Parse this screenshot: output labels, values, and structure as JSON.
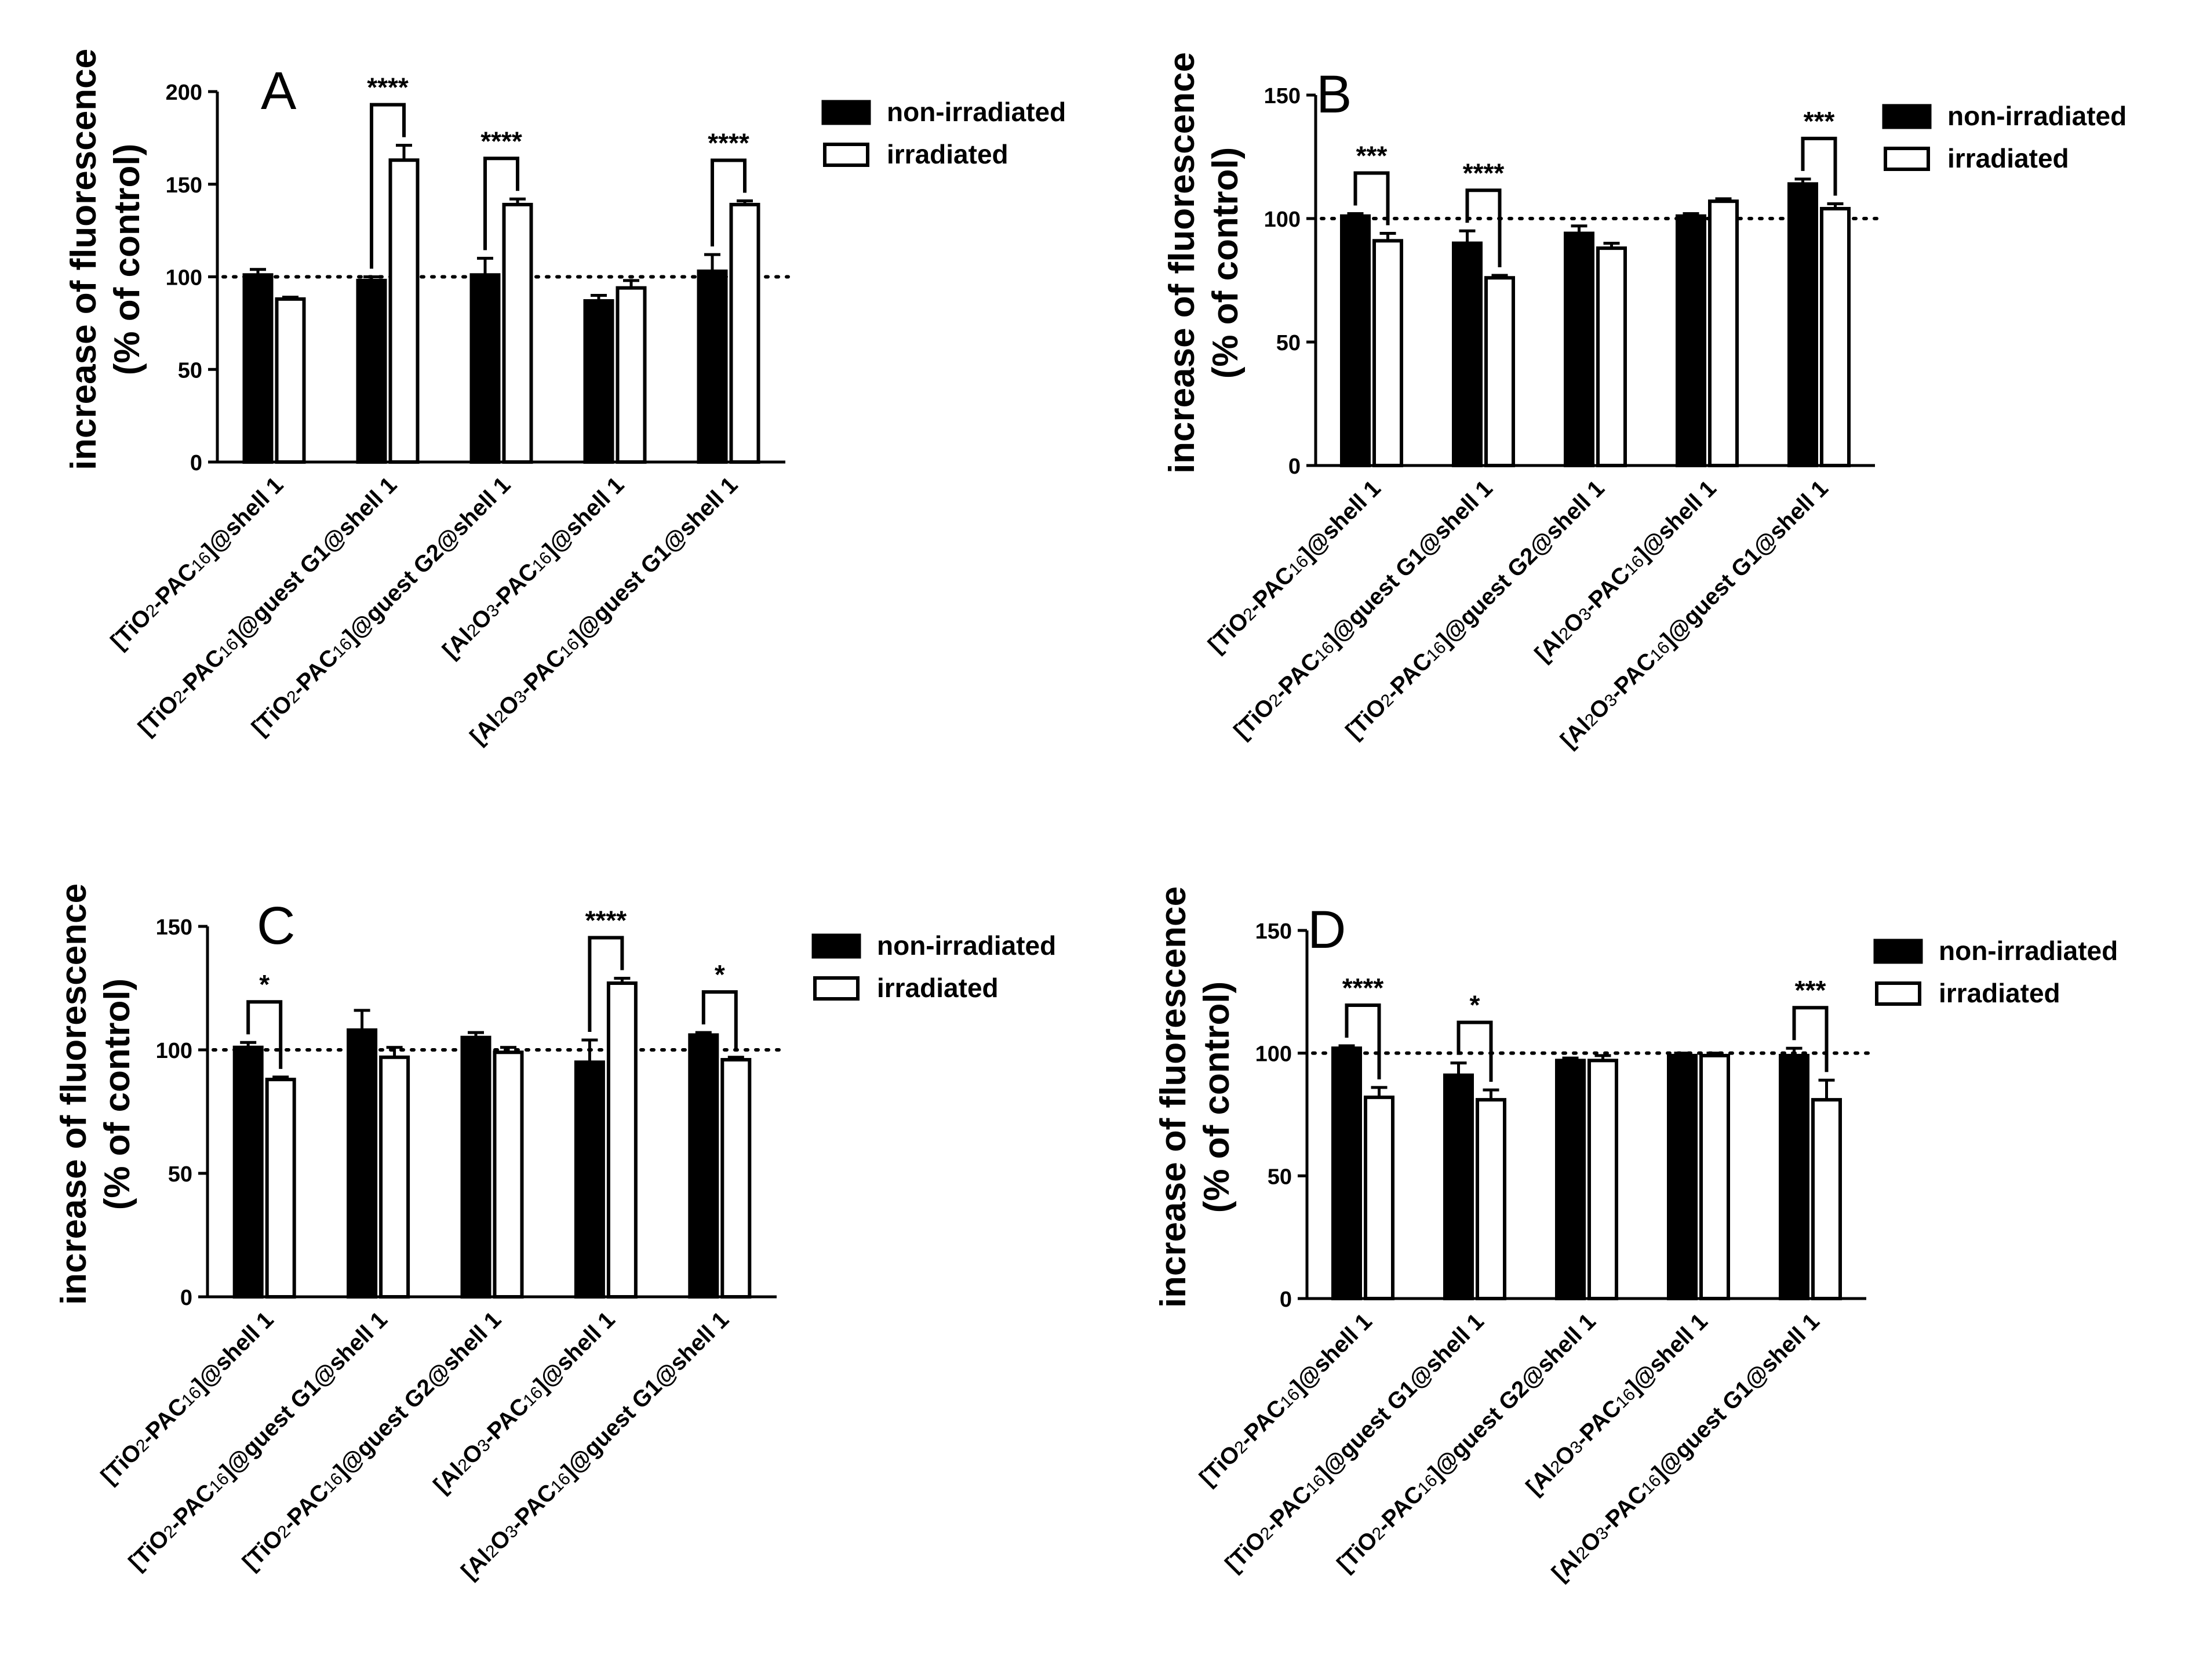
{
  "chart_data": [
    {
      "type": "bar",
      "panel": "A",
      "ylabel_line1": "increase of fluorescence",
      "ylabel_line2": "(% of control)",
      "ylim": [
        0,
        200
      ],
      "yticks": [
        0,
        50,
        100,
        150,
        200
      ],
      "reference_line": 100,
      "categories": [
        "[TiO2-PAC16]@shell 1",
        "[TiO2-PAC16]@guest G1@shell 1",
        "[TiO2-PAC16]@guest G2@shell 1",
        "[Al2O3-PAC16]@shell 1",
        "[Al2O3-PAC16]@guest G1@shell 1"
      ],
      "series": [
        {
          "name": "non-irradiated",
          "values": [
            101,
            98,
            101,
            87,
            103
          ],
          "errors": [
            3,
            2,
            9,
            3,
            9
          ]
        },
        {
          "name": "irradiated",
          "values": [
            88,
            163,
            139,
            94,
            139
          ],
          "errors": [
            1,
            8,
            3,
            4,
            2
          ]
        }
      ],
      "significance": [
        {
          "category": 1,
          "label": "****"
        },
        {
          "category": 2,
          "label": "****"
        },
        {
          "category": 4,
          "label": "****"
        }
      ]
    },
    {
      "type": "bar",
      "panel": "B",
      "ylabel_line1": "increase of fluorescence",
      "ylabel_line2": "(% of control)",
      "ylim": [
        0,
        150
      ],
      "yticks": [
        0,
        50,
        100,
        150
      ],
      "reference_line": 100,
      "categories": [
        "[TiO2-PAC16]@shell 1",
        "[TiO2-PAC16]@guest G1@shell 1",
        "[TiO2-PAC16]@guest G2@shell 1",
        "[Al2O3-PAC16]@shell 1",
        "[Al2O3-PAC16]@guest G1@shell 1"
      ],
      "series": [
        {
          "name": "non-irradiated",
          "values": [
            101,
            90,
            94,
            101,
            114
          ],
          "errors": [
            1,
            5,
            3,
            1,
            2
          ]
        },
        {
          "name": "irradiated",
          "values": [
            91,
            76,
            88,
            107,
            104
          ],
          "errors": [
            3,
            1,
            2,
            1,
            2
          ]
        }
      ],
      "significance": [
        {
          "category": 0,
          "label": "***"
        },
        {
          "category": 1,
          "label": "****"
        },
        {
          "category": 4,
          "label": "***"
        }
      ]
    },
    {
      "type": "bar",
      "panel": "C",
      "ylabel_line1": "increase of fluorescence",
      "ylabel_line2": "(% of control)",
      "ylim": [
        0,
        150
      ],
      "yticks": [
        0,
        50,
        100,
        150
      ],
      "reference_line": 100,
      "categories": [
        "[TiO2-PAC16]@shell 1",
        "[TiO2-PAC16]@guest G1@shell 1",
        "[TiO2-PAC16]@guest G2@shell 1",
        "[Al2O3-PAC16]@shell 1",
        "[Al2O3-PAC16]@guest G1@shell 1"
      ],
      "series": [
        {
          "name": "non-irradiated",
          "values": [
            101,
            108,
            105,
            95,
            106
          ],
          "errors": [
            2,
            8,
            2,
            9,
            1
          ]
        },
        {
          "name": "irradiated",
          "values": [
            88,
            97,
            99,
            127,
            96
          ],
          "errors": [
            1,
            4,
            2,
            2,
            1
          ]
        }
      ],
      "significance": [
        {
          "category": 0,
          "label": "*"
        },
        {
          "category": 3,
          "label": "****"
        },
        {
          "category": 4,
          "label": "*"
        }
      ]
    },
    {
      "type": "bar",
      "panel": "D",
      "ylabel_line1": "increase of fluorescence",
      "ylabel_line2": "(% of control)",
      "ylim": [
        0,
        150
      ],
      "yticks": [
        0,
        50,
        100,
        150
      ],
      "reference_line": 100,
      "categories": [
        "[TiO2-PAC16]@shell 1",
        "[TiO2-PAC16]@guest G1@shell 1",
        "[TiO2-PAC16]@guest G2@shell 1",
        "[Al2O3-PAC16]@shell 1",
        "[Al2O3-PAC16]@guest G1@shell 1"
      ],
      "series": [
        {
          "name": "non-irradiated",
          "values": [
            102,
            91,
            97,
            99,
            99
          ],
          "errors": [
            1,
            5,
            1,
            1,
            3
          ]
        },
        {
          "name": "irradiated",
          "values": [
            82,
            81,
            97,
            99,
            81
          ],
          "errors": [
            4,
            4,
            2,
            1,
            8
          ]
        }
      ],
      "significance": [
        {
          "category": 0,
          "label": "****"
        },
        {
          "category": 1,
          "label": "*"
        },
        {
          "category": 4,
          "label": "***"
        }
      ]
    }
  ],
  "legend": {
    "non_irradiated": "non-irradiated",
    "irradiated": "irradiated"
  },
  "colors": {
    "non_irradiated_fill": "#000000",
    "irradiated_fill": "#ffffff",
    "stroke": "#000000"
  }
}
